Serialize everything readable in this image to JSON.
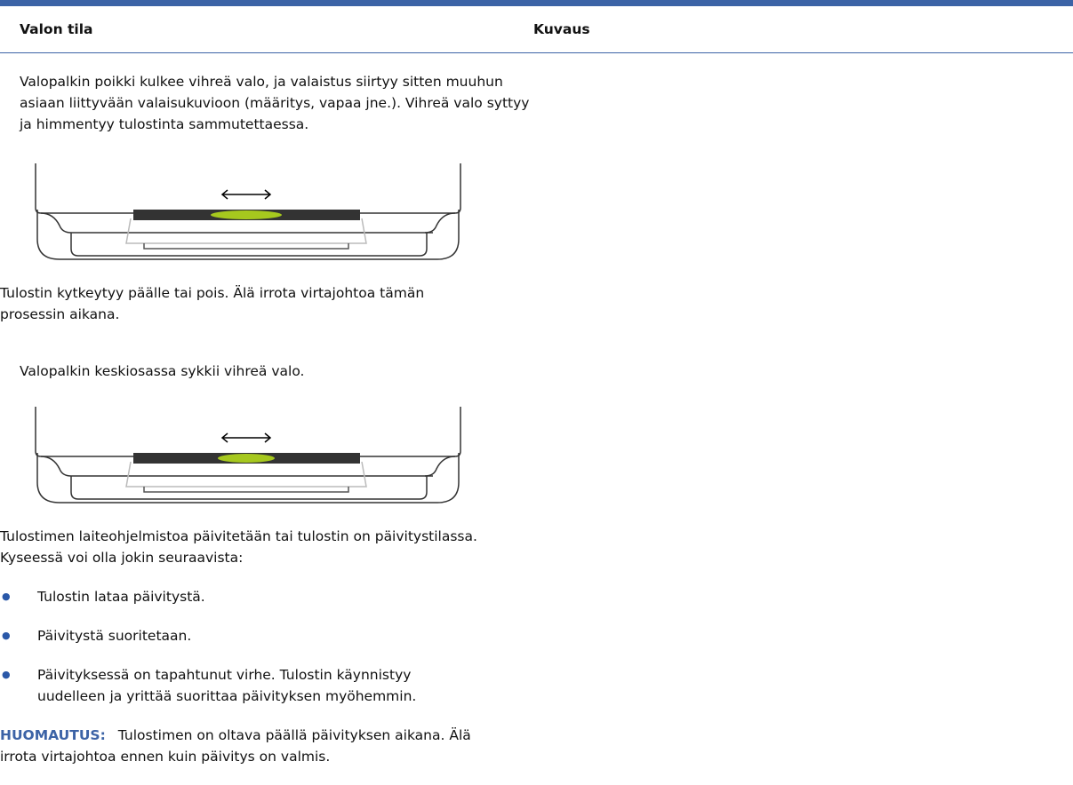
{
  "table": {
    "headers": [
      "Valon tila",
      "Kuvaus"
    ],
    "rows": [
      {
        "state": "Valopalkin poikki kulkee vihreä valo, ja valaistus siirtyy sitten muuhun asiaan liittyvään valaisukuvioon (määritys, vapaa jne.). Vihreä valo syttyy ja himmentyy tulostinta sammutettaessa.",
        "description": "Tulostin kytkeytyy päälle tai pois. Älä irrota virtajohtoa tämän prosessin aikana.",
        "bullets": [],
        "note_label": null,
        "note": null
      },
      {
        "state": "Valopalkin keskiosassa sykkii vihreä valo.",
        "description": "Tulostimen laiteohjelmistoa päivitetään tai tulostin on päivitystilassa. Kyseessä voi olla jokin seuraavista:",
        "bullets": [
          "Tulostin lataa päivitystä.",
          "Päivitystä suoritetaan.",
          "Päivityksessä on tapahtunut virhe. Tulostin käynnistyy uudelleen ja yrittää suorittaa päivityksen myöhemmin."
        ],
        "note_label": "HUOMAUTUS:",
        "note": "Tulostimen on oltava päällä päivityksen aikana. Älä irrota virtajohtoa ennen kuin päivitys on valmis."
      }
    ]
  }
}
